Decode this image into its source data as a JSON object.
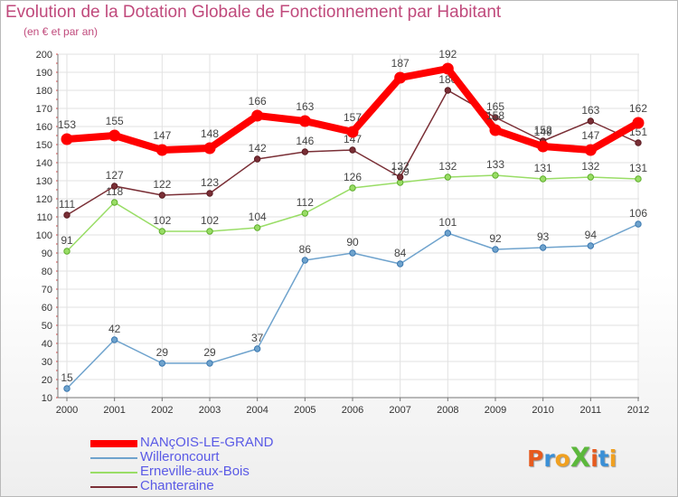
{
  "chart_data": {
    "type": "line",
    "title": "Evolution de la Dotation Globale de Fonctionnement par Habitant",
    "subtitle": "(en € et par an)",
    "x": [
      "2000",
      "2001",
      "2002",
      "2003",
      "2004",
      "2005",
      "2006",
      "2007",
      "2008",
      "2009",
      "2010",
      "2011",
      "2012"
    ],
    "ylim": [
      10,
      200
    ],
    "yticks": [
      10,
      20,
      30,
      40,
      50,
      60,
      70,
      80,
      90,
      100,
      110,
      120,
      130,
      140,
      150,
      160,
      170,
      180,
      190,
      200
    ],
    "grid": true,
    "legend_position": "bottom-left",
    "series": [
      {
        "name": "NANçOIS-LE-GRAND",
        "color": "#ff0000",
        "values": [
          153,
          155,
          147,
          148,
          166,
          163,
          157,
          187,
          192,
          158,
          149,
          147,
          162
        ]
      },
      {
        "name": "Willeroncourt",
        "color": "#6fa3cd",
        "values": [
          15,
          42,
          29,
          29,
          37,
          86,
          90,
          84,
          101,
          92,
          93,
          94,
          106
        ]
      },
      {
        "name": "Erneville-aux-Bois",
        "color": "#99dd66",
        "values": [
          91,
          118,
          102,
          102,
          104,
          112,
          126,
          129,
          132,
          133,
          131,
          132,
          131
        ]
      },
      {
        "name": "Chanteraine",
        "color": "#7a2f36",
        "values": [
          111,
          127,
          122,
          123,
          142,
          146,
          147,
          132,
          180,
          165,
          152,
          163,
          151
        ]
      }
    ]
  },
  "logo": {
    "text": "ProXiti",
    "colors": [
      "#e65a1e",
      "#3a8fd6",
      "#f0a020",
      "#5cb83c",
      "#e65a1e",
      "#3a8fd6",
      "#f0a020"
    ]
  }
}
